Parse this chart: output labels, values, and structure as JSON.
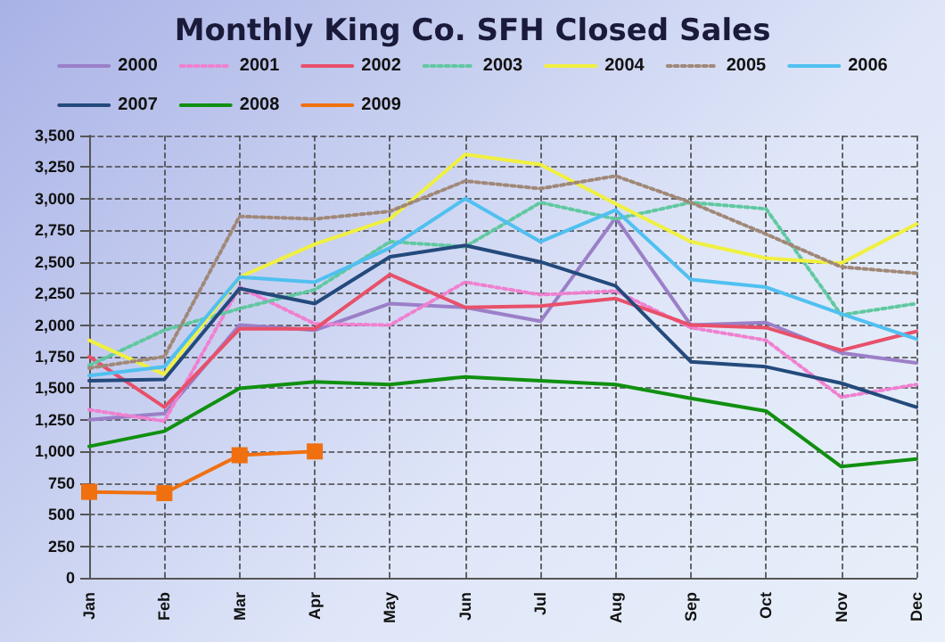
{
  "chart_data": {
    "type": "line",
    "title": "Monthly King Co. SFH Closed Sales",
    "categories": [
      "Jan",
      "Feb",
      "Mar",
      "Apr",
      "May",
      "Jun",
      "Jul",
      "Aug",
      "Sep",
      "Oct",
      "Nov",
      "Dec"
    ],
    "ylim": [
      0,
      3500
    ],
    "yticks": [
      0,
      250,
      500,
      750,
      {
        "value": 1000,
        "label": "1,000"
      },
      {
        "value": 1250,
        "label": "1,250"
      },
      {
        "value": 1500,
        "label": "1,500"
      },
      {
        "value": 1750,
        "label": "1,750"
      },
      {
        "value": 2000,
        "label": "2,000"
      },
      {
        "value": 2250,
        "label": "2,250"
      },
      {
        "value": 2500,
        "label": "2,500"
      },
      {
        "value": 2750,
        "label": "2,750"
      },
      {
        "value": 3000,
        "label": "3,000"
      },
      {
        "value": 3250,
        "label": "3,250"
      },
      {
        "value": 3500,
        "label": "3,500"
      }
    ],
    "grid": true,
    "legend": "top",
    "marker": "none",
    "series": [
      {
        "name": "2000",
        "color": "#9b7fc8",
        "line_style": "solid",
        "values": [
          1250,
          1300,
          2000,
          1960,
          2170,
          2140,
          2030,
          2850,
          2000,
          2020,
          1780,
          1700
        ]
      },
      {
        "name": "2001",
        "color": "#f080d0",
        "line_style": "dotted",
        "values": [
          1330,
          1240,
          2300,
          2010,
          2000,
          2340,
          2240,
          2270,
          1980,
          1880,
          1430,
          1530
        ]
      },
      {
        "name": "2002",
        "color": "#e8506a",
        "line_style": "solid",
        "values": [
          1750,
          1350,
          1970,
          1970,
          2400,
          2140,
          2150,
          2210,
          2000,
          1980,
          1800,
          1950
        ]
      },
      {
        "name": "2003",
        "color": "#60c8a0",
        "line_style": "dotted",
        "values": [
          1680,
          1960,
          2130,
          2280,
          2660,
          2620,
          2970,
          2840,
          2970,
          2920,
          2080,
          2170
        ]
      },
      {
        "name": "2004",
        "color": "#f0f040",
        "line_style": "solid",
        "values": [
          1880,
          1610,
          2380,
          2640,
          2840,
          3350,
          3270,
          2960,
          2660,
          2530,
          2490,
          2800
        ]
      },
      {
        "name": "2005",
        "color": "#a08878",
        "line_style": "dotted",
        "values": [
          1660,
          1750,
          2860,
          2840,
          2900,
          3140,
          3080,
          3180,
          2970,
          2720,
          2460,
          2410
        ]
      },
      {
        "name": "2006",
        "color": "#50c0f0",
        "line_style": "solid",
        "values": [
          1600,
          1670,
          2380,
          2340,
          2610,
          3000,
          2660,
          2910,
          2360,
          2300,
          2090,
          1890
        ]
      },
      {
        "name": "2007",
        "color": "#244a7c",
        "line_style": "solid",
        "values": [
          1560,
          1570,
          2290,
          2170,
          2540,
          2630,
          2500,
          2310,
          1710,
          1670,
          1540,
          1350
        ]
      },
      {
        "name": "2008",
        "color": "#109010",
        "line_style": "solid",
        "values": [
          1040,
          1160,
          1500,
          1550,
          1530,
          1590,
          1560,
          1530,
          1420,
          1320,
          880,
          940
        ]
      },
      {
        "name": "2009",
        "color": "#f07010",
        "line_style": "solid",
        "marker": "square",
        "values": [
          680,
          670,
          970,
          1000,
          null,
          null,
          null,
          null,
          null,
          null,
          null,
          null
        ]
      }
    ]
  }
}
